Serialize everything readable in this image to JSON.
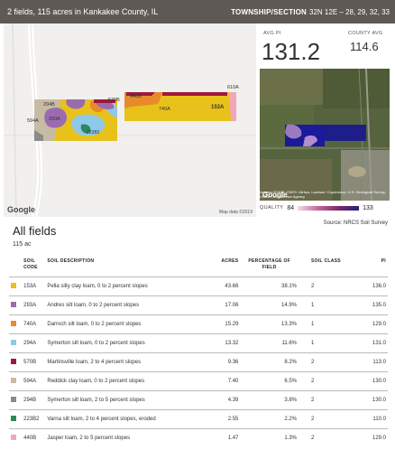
{
  "header": {
    "title": "2 fields, 115 acres in Kankakee County, IL",
    "twp_label": "TOWNSHIP/SECTION",
    "twp_value": "32N 12E – 28, 29, 32, 33"
  },
  "stats": {
    "avg_pi_label": "AVG PI",
    "avg_pi_value": "131.2",
    "county_avg_label": "COUNTY AVG",
    "county_avg_value": "114.6"
  },
  "map": {
    "google_logo": "Google",
    "credit": "Map data ©2019",
    "labels": [
      "294B",
      "293A",
      "594A",
      "440B",
      "740A",
      "153A",
      "570B",
      "223B2",
      "610A"
    ]
  },
  "satellite": {
    "google_logo": "Google",
    "credit": "Imagery ©2019, CNES / Airbus, Landsat / Copernicus, U.S. Geological Survey, USDA Farm Service Agency",
    "label": "Reddick Gravel Pit Protected Area"
  },
  "quality": {
    "label": "QUALITY",
    "min": "84",
    "max": "133"
  },
  "source": "Source: NRCS Soil Survey",
  "section_title": "All fields",
  "acres_total": "115 ac",
  "table": {
    "headers": {
      "code": "SOIL CODE",
      "desc": "SOIL DESCRIPTION",
      "acres": "ACRES",
      "pct": "PERCENTAGE OF FIELD",
      "class": "SOIL CLASS",
      "pi": "PI"
    },
    "rows": [
      {
        "color": "#e8c21a",
        "code": "153A",
        "desc": "Pella silty clay loam, 0 to 2 percent slopes",
        "acres": "43.66",
        "pct": "38.1%",
        "class": "2",
        "pi": "136.0"
      },
      {
        "color": "#9b6bb0",
        "code": "293A",
        "desc": "Andres silt loam, 0 to 2 percent slopes",
        "acres": "17.06",
        "pct": "14.9%",
        "class": "1",
        "pi": "135.0"
      },
      {
        "color": "#e88a2a",
        "code": "740A",
        "desc": "Darroch silt loam, 0 to 2 percent slopes",
        "acres": "15.29",
        "pct": "13.3%",
        "class": "1",
        "pi": "129.0"
      },
      {
        "color": "#8fc9ea",
        "code": "294A",
        "desc": "Symerton silt loam, 0 to 2 percent slopes",
        "acres": "13.32",
        "pct": "11.6%",
        "class": "1",
        "pi": "131.0"
      },
      {
        "color": "#a0183a",
        "code": "570B",
        "desc": "Martinsville loam, 2 to 4 percent slopes",
        "acres": "9.36",
        "pct": "8.2%",
        "class": "2",
        "pi": "113.0"
      },
      {
        "color": "#c8bba4",
        "code": "594A",
        "desc": "Reddick clay loam, 0 to 2 percent slopes",
        "acres": "7.40",
        "pct": "6.5%",
        "class": "2",
        "pi": "130.0"
      },
      {
        "color": "#8a8a8a",
        "code": "294B",
        "desc": "Symerton silt loam, 2 to 5 percent slopes",
        "acres": "4.39",
        "pct": "3.8%",
        "class": "2",
        "pi": "130.0"
      },
      {
        "color": "#2a8a5a",
        "code": "223B2",
        "desc": "Varna silt loam, 2 to 4 percent slopes, eroded",
        "acres": "2.55",
        "pct": "2.2%",
        "class": "2",
        "pi": "110.0"
      },
      {
        "color": "#f0a8b8",
        "code": "440B",
        "desc": "Jasper loam, 2 to 5 percent slopes",
        "acres": "1.47",
        "pct": "1.3%",
        "class": "2",
        "pi": "129.0"
      }
    ]
  }
}
